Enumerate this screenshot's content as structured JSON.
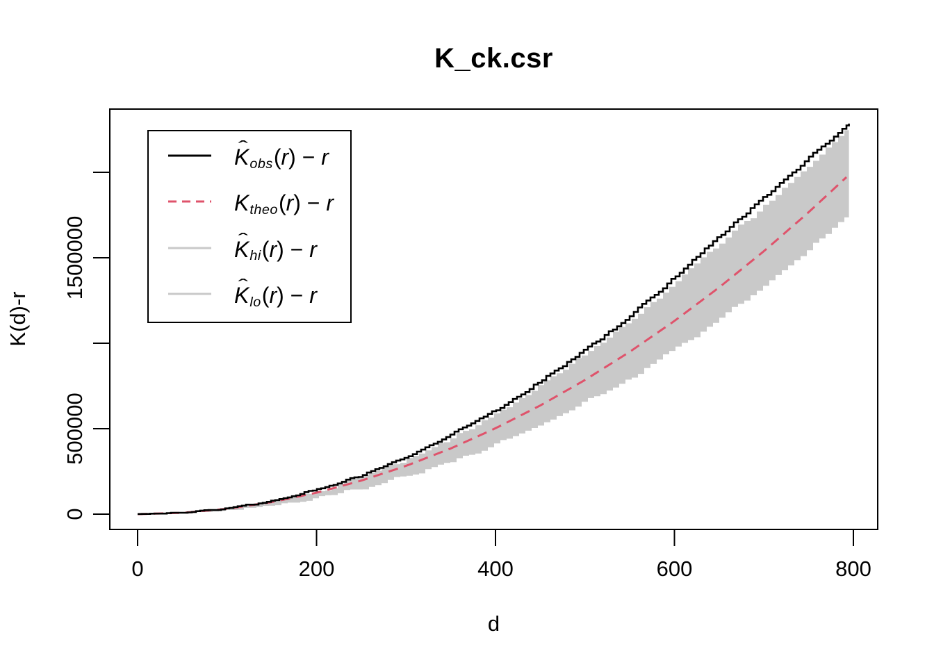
{
  "title": "K_ck.csr",
  "x_axis": {
    "label": "d",
    "ticks": [
      0,
      200,
      400,
      600,
      800
    ]
  },
  "y_axis": {
    "label": "K(d)-r",
    "tick_values": [
      0,
      500000,
      1000000,
      1500000,
      2000000
    ],
    "tick_labels": [
      "0",
      "500000",
      "",
      "1500000",
      ""
    ]
  },
  "colors": {
    "observed": "#000000",
    "theoretical": "#DF536B",
    "envelope_fill": "#C9C9C9",
    "envelope_line": "#C9C9C9",
    "box": "#000000"
  },
  "legend": {
    "variable": "r",
    "entries": [
      {
        "name": "K_obs(r) - r",
        "base": "K",
        "hat": true,
        "sub": "obs",
        "line_color": "#000000",
        "line_style": "solid"
      },
      {
        "name": "K_theo(r) - r",
        "base": "K",
        "hat": false,
        "sub": "theo",
        "line_color": "#DF536B",
        "line_style": "dashed"
      },
      {
        "name": "K_hi(r) - r",
        "base": "K",
        "hat": true,
        "sub": "hi",
        "line_color": "#C9C9C9",
        "line_style": "solid"
      },
      {
        "name": "K_lo(r) - r",
        "base": "K",
        "hat": true,
        "sub": "lo",
        "line_color": "#C9C9C9",
        "line_style": "solid"
      }
    ]
  },
  "chart_data": {
    "type": "line",
    "title": "K_ck.csr",
    "xlabel": "d",
    "ylabel": "K(d)-r",
    "xlim": [
      0,
      800
    ],
    "ylim": [
      0,
      2370000
    ],
    "grid": false,
    "legend_position": "top-left",
    "x": [
      0,
      50,
      100,
      150,
      200,
      250,
      300,
      350,
      400,
      450,
      500,
      550,
      600,
      650,
      700,
      750,
      795
    ],
    "series": [
      {
        "name": "K_obs(r) - r",
        "role": "observed",
        "color": "#000000",
        "style": "solid",
        "values": [
          0,
          8000,
          31000,
          76000,
          142000,
          228000,
          335000,
          462000,
          608000,
          775000,
          960000,
          1160000,
          1385000,
          1630000,
          1855000,
          2090000,
          2285000
        ]
      },
      {
        "name": "K_theo(r) - r",
        "role": "theoretical",
        "color": "#DF536B",
        "style": "dashed",
        "values": [
          0,
          7804,
          31316,
          70536,
          125464,
          196100,
          282443,
          384495,
          502255,
          635722,
          784898,
          949781,
          1130373,
          1326672,
          1538680,
          1766396,
          1984780
        ]
      },
      {
        "name": "K_hi(r) - r",
        "role": "envelope-upper",
        "color": "#C9C9C9",
        "style": "band-edge",
        "values": [
          0,
          7500,
          28000,
          70000,
          133000,
          216000,
          320000,
          446000,
          592000,
          757000,
          940000,
          1140000,
          1360000,
          1595000,
          1805000,
          2050000,
          2268000
        ]
      },
      {
        "name": "K_lo(r) - r",
        "role": "envelope-lower",
        "color": "#C9C9C9",
        "style": "band-edge",
        "values": [
          0,
          4000,
          18000,
          45000,
          90000,
          145000,
          215000,
          300000,
          400000,
          515000,
          645000,
          780000,
          942000,
          1118000,
          1312000,
          1520000,
          1736000
        ]
      }
    ],
    "envelope": {
      "upper": "envelope-upper",
      "lower": "envelope-lower",
      "fill": "#C9C9C9"
    }
  }
}
